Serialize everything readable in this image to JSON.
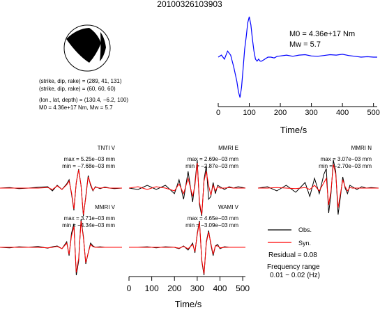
{
  "title": "20100326103903",
  "focal_mechanism": {
    "nodal_plane_1": "(strike, dip, rake) = (289, 41, 131)",
    "nodal_plane_2": "(strike, dip, rake) = (60, 60, 60)",
    "location": "(lon., lat, depth) = (130.4, −6.2, 100)",
    "moment_line": "M0 = 4.36e+17 Nm, Mw = 5.7"
  },
  "stf": {
    "moment_label": "M0 = 4.36e+17 Nm",
    "mw_label": "Mw = 5.7",
    "xlabel": "Time/s",
    "xticks": [
      0,
      100,
      200,
      300,
      400,
      500
    ],
    "xlim": [
      0,
      512
    ],
    "line_color": "#0000ff"
  },
  "traces": [
    {
      "station": "TNTI V",
      "max": "max = 5.25e−03 mm",
      "min": "min = −7.68e−03 mm"
    },
    {
      "station": "MMRI E",
      "max": "max = 2.69e−03 mm",
      "min": "min = −2.87e−03 mm"
    },
    {
      "station": "MMRI N",
      "max": "max = 3.07e−03 mm",
      "min": "min = −2.70e−03 mm"
    },
    {
      "station": "MMRI V",
      "max": "max = 3.71e−03 mm",
      "min": "min = −4.34e−03 mm"
    },
    {
      "station": "WAMI V",
      "max": "max = 4.65e−03 mm",
      "min": "min = −3.09e−03 mm"
    }
  ],
  "legend": {
    "obs_label": "Obs.",
    "syn_label": "Syn.",
    "obs_color": "#000000",
    "syn_color": "#ff0000",
    "residual": "Residual = 0.08",
    "freq_title": "Frequency range",
    "freq_range": "0.01 − 0.02 (Hz)"
  },
  "waveform_axis": {
    "xlabel": "Time/s",
    "xticks": [
      0,
      100,
      200,
      300,
      400,
      500
    ],
    "xlim": [
      0,
      512
    ]
  },
  "chart_data": [
    {
      "type": "line",
      "name": "source-time-function",
      "xlabel": "Time/s",
      "xlim": [
        0,
        512
      ],
      "x": [
        0,
        10,
        20,
        30,
        40,
        50,
        60,
        65,
        70,
        75,
        80,
        85,
        90,
        95,
        100,
        105,
        110,
        115,
        120,
        125,
        130,
        135,
        140,
        150,
        160,
        170,
        180,
        190,
        200,
        220,
        240,
        260,
        280,
        300,
        320,
        340,
        360,
        380,
        400,
        420,
        440,
        460,
        480,
        500,
        512
      ],
      "y": [
        0.0,
        0.05,
        -0.05,
        0.15,
        0.05,
        -0.25,
        -0.6,
        -0.85,
        -1.0,
        -0.75,
        -0.3,
        0.2,
        0.5,
        0.85,
        1.0,
        0.8,
        0.45,
        0.15,
        -0.05,
        -0.1,
        -0.05,
        -0.1,
        -0.1,
        -0.05,
        0.0,
        0.0,
        -0.02,
        0.02,
        0.03,
        0.05,
        0.02,
        0.05,
        0.06,
        0.03,
        0.02,
        0.04,
        0.06,
        0.05,
        0.07,
        0.04,
        0.02,
        0.0,
        0.01,
        0.0,
        0.0
      ]
    },
    {
      "type": "line",
      "station": "TNTI V",
      "x": [
        0,
        40,
        80,
        120,
        160,
        200,
        220,
        240,
        260,
        280,
        290,
        300,
        310,
        320,
        330,
        340,
        350,
        360,
        370,
        380,
        390,
        400,
        420,
        440,
        460,
        480,
        512
      ],
      "series": [
        {
          "name": "Obs.",
          "values": [
            0.0,
            0.02,
            -0.02,
            0.0,
            0.03,
            0.05,
            -0.1,
            0.1,
            -0.05,
            0.15,
            0.3,
            -0.2,
            -0.8,
            0.2,
            0.68,
            0.1,
            -1.0,
            -0.3,
            0.45,
            0.1,
            -0.1,
            0.05,
            -0.02,
            0.04,
            0.0,
            -0.02,
            0.0
          ]
        },
        {
          "name": "Syn.",
          "values": [
            0.0,
            0.0,
            0.0,
            0.0,
            0.0,
            0.02,
            -0.05,
            0.08,
            -0.05,
            0.12,
            0.25,
            -0.15,
            -0.75,
            0.2,
            0.65,
            0.1,
            -0.95,
            -0.35,
            0.4,
            0.15,
            -0.08,
            0.03,
            0.0,
            0.02,
            0.0,
            0.0,
            0.0
          ]
        }
      ]
    },
    {
      "type": "line",
      "station": "MMRI E",
      "x": [
        0,
        40,
        80,
        120,
        160,
        200,
        220,
        240,
        260,
        280,
        290,
        300,
        310,
        320,
        330,
        340,
        350,
        360,
        370,
        380,
        390,
        400,
        420,
        440,
        460,
        480,
        512
      ],
      "series": [
        {
          "name": "Obs.",
          "values": [
            0.0,
            -0.05,
            0.1,
            -0.05,
            0.1,
            -0.2,
            0.3,
            -0.4,
            0.6,
            -0.5,
            0.2,
            1.0,
            -0.6,
            -1.0,
            0.3,
            0.8,
            -0.4,
            -0.3,
            0.2,
            -0.2,
            0.1,
            0.05,
            -0.05,
            0.05,
            0.0,
            0.05,
            0.0
          ]
        },
        {
          "name": "Syn.",
          "values": [
            0.0,
            0.05,
            -0.05,
            0.05,
            0.0,
            -0.1,
            0.15,
            -0.2,
            0.35,
            -0.3,
            0.1,
            0.9,
            -0.5,
            -0.95,
            0.25,
            0.6,
            0.1,
            -0.25,
            0.1,
            -0.1,
            0.05,
            0.0,
            0.0,
            0.02,
            0.0,
            0.0,
            0.0
          ]
        }
      ]
    },
    {
      "type": "line",
      "station": "MMRI N",
      "x": [
        0,
        40,
        80,
        120,
        160,
        200,
        220,
        240,
        260,
        280,
        290,
        300,
        310,
        320,
        330,
        340,
        350,
        360,
        370,
        380,
        390,
        400,
        420,
        440,
        460,
        480,
        512
      ],
      "series": [
        {
          "name": "Obs.",
          "values": [
            0.0,
            0.05,
            -0.1,
            0.1,
            -0.15,
            0.2,
            -0.3,
            0.35,
            -0.2,
            0.5,
            0.7,
            -0.9,
            -0.2,
            1.0,
            0.6,
            -0.95,
            -0.3,
            0.4,
            0.0,
            -0.2,
            0.1,
            0.05,
            -0.05,
            0.05,
            0.0,
            0.02,
            0.0
          ]
        },
        {
          "name": "Syn.",
          "values": [
            0.0,
            0.0,
            0.02,
            0.0,
            -0.02,
            0.02,
            -0.05,
            0.1,
            -0.1,
            0.2,
            0.35,
            -0.6,
            -0.1,
            0.85,
            0.5,
            -0.7,
            -0.2,
            0.3,
            0.05,
            -0.1,
            0.02,
            0.0,
            0.0,
            0.0,
            0.0,
            0.0,
            0.0
          ]
        }
      ]
    },
    {
      "type": "line",
      "station": "MMRI V",
      "x": [
        0,
        40,
        80,
        120,
        160,
        200,
        220,
        240,
        260,
        280,
        290,
        300,
        310,
        320,
        330,
        340,
        350,
        360,
        370,
        380,
        390,
        400,
        420,
        440,
        460,
        480,
        512
      ],
      "series": [
        {
          "name": "Obs.",
          "values": [
            0.0,
            -0.02,
            0.02,
            0.0,
            0.03,
            -0.03,
            0.02,
            0.05,
            -0.05,
            0.2,
            -0.3,
            0.5,
            0.85,
            -1.0,
            -0.5,
            1.0,
            0.4,
            -0.6,
            -0.2,
            0.15,
            0.05,
            0.0,
            0.02,
            0.0,
            0.0,
            0.0,
            0.0
          ]
        },
        {
          "name": "Syn.",
          "values": [
            0.0,
            0.0,
            0.0,
            0.0,
            0.0,
            -0.02,
            0.0,
            0.03,
            -0.05,
            0.15,
            -0.25,
            0.4,
            0.75,
            -0.9,
            -0.4,
            0.95,
            0.35,
            -0.55,
            -0.2,
            0.1,
            0.02,
            0.0,
            0.0,
            0.0,
            0.0,
            0.0,
            0.0
          ]
        }
      ]
    },
    {
      "type": "line",
      "station": "WAMI V",
      "x": [
        0,
        40,
        80,
        120,
        160,
        200,
        220,
        240,
        260,
        280,
        290,
        300,
        310,
        320,
        330,
        340,
        350,
        360,
        370,
        380,
        390,
        400,
        420,
        440,
        460,
        480,
        512
      ],
      "series": [
        {
          "name": "Obs.",
          "values": [
            0.0,
            0.0,
            0.02,
            -0.02,
            0.02,
            0.0,
            -0.05,
            0.05,
            -0.1,
            0.15,
            -0.2,
            0.5,
            0.95,
            -0.5,
            -1.0,
            0.2,
            0.6,
            0.1,
            -0.3,
            0.05,
            0.1,
            -0.05,
            0.02,
            0.0,
            0.0,
            0.0,
            0.0
          ]
        },
        {
          "name": "Syn.",
          "values": [
            0.0,
            0.0,
            0.0,
            0.0,
            0.0,
            0.0,
            -0.03,
            0.03,
            -0.05,
            0.1,
            -0.15,
            0.45,
            0.9,
            -0.45,
            -0.95,
            0.15,
            0.55,
            0.15,
            -0.25,
            0.05,
            0.05,
            -0.02,
            0.0,
            0.0,
            0.0,
            0.0,
            0.0
          ]
        }
      ]
    }
  ]
}
